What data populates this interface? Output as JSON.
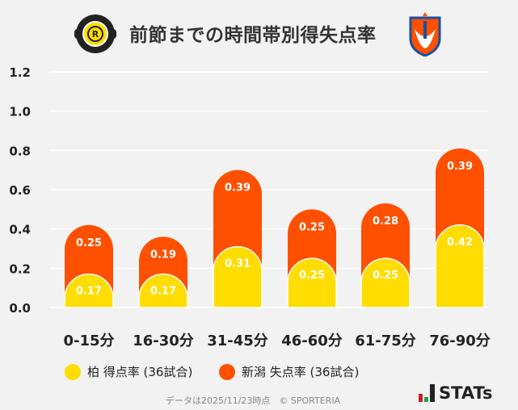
{
  "title": "前節までの時間帯別得失点率",
  "logos": {
    "left": "KASHIWA REYSOL",
    "right": "ALBIREX"
  },
  "colors": {
    "kashiwa": "#ffdd00",
    "niigata": "#ff5000",
    "background": "#f2f2f2"
  },
  "chart_data": {
    "type": "bar",
    "stacked": true,
    "title": "前節までの時間帯別得失点率",
    "categories": [
      "0-15分",
      "16-30分",
      "31-45分",
      "46-60分",
      "61-75分",
      "76-90分"
    ],
    "series": [
      {
        "name": "柏 得点率 (36試合)",
        "color": "#ffdd00",
        "values": [
          0.17,
          0.17,
          0.31,
          0.25,
          0.25,
          0.42
        ]
      },
      {
        "name": "新潟 失点率 (36試合)",
        "color": "#ff5000",
        "values": [
          0.25,
          0.19,
          0.39,
          0.25,
          0.28,
          0.39
        ]
      }
    ],
    "ylim": [
      0,
      1.2
    ],
    "yticks": [
      "0.0",
      "0.2",
      "0.4",
      "0.6",
      "0.8",
      "1.0",
      "1.2"
    ],
    "grid": true,
    "legend": "bottom"
  },
  "footer": "データは2025/11/23時点　© SPORTERIA",
  "brand": "STATs"
}
